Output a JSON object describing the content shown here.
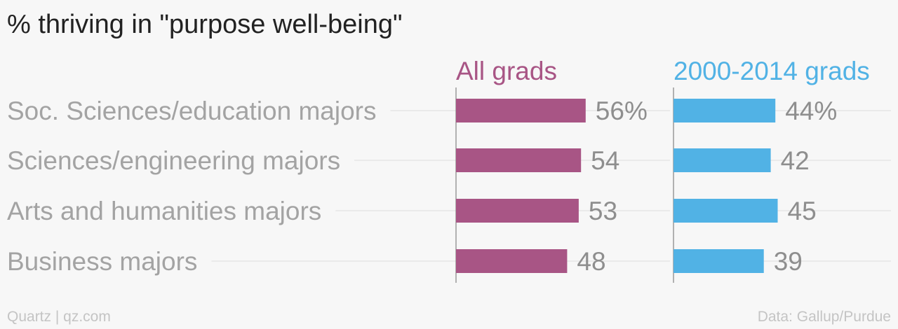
{
  "header": {
    "title": "% thriving in \"purpose well-being\""
  },
  "footer": {
    "left": "Quartz | qz.com",
    "right": "Data: Gallup/Purdue"
  },
  "chart_data": {
    "type": "bar",
    "orientation": "horizontal",
    "title": "% thriving in \"purpose well-being\"",
    "categories": [
      "Soc. Sciences/education majors",
      "Sciences/engineering majors",
      "Arts and humanities majors",
      "Business majors"
    ],
    "series": [
      {
        "name": "All grads",
        "values": [
          56,
          54,
          53,
          48
        ],
        "labels": [
          "56%",
          "54",
          "53",
          "48"
        ],
        "color": "#a85585"
      },
      {
        "name": "2000-2014 grads",
        "values": [
          44,
          42,
          45,
          39
        ],
        "labels": [
          "44%",
          "42",
          "45",
          "39"
        ],
        "color": "#51b2e5"
      }
    ],
    "xlim": [
      0,
      100
    ],
    "grid": true,
    "legend": "top, above each panel"
  },
  "colors": {
    "all_grads": "#a85585",
    "recent_grads": "#51b2e5",
    "label_gray": "#a3a3a3",
    "value_gray": "#8e8e8e",
    "grid": "#e6e6e6"
  }
}
